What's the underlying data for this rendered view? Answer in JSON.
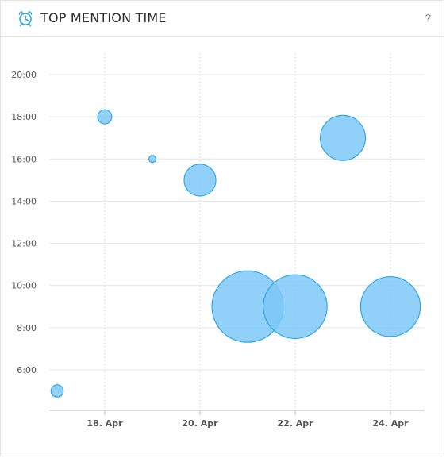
{
  "header": {
    "title": "TOP MENTION TIME",
    "help_label": "?",
    "icon": "alarm-clock-icon"
  },
  "colors": {
    "bubble_fill": "#7cc8f8",
    "bubble_stroke": "#1a9fe0",
    "grid": "#e4e4e4",
    "axis_text": "#555555"
  },
  "chart_data": {
    "type": "bubble",
    "title": "",
    "xlabel": "",
    "ylabel": "",
    "x_tick_labels": [
      "18. Apr",
      "20. Apr",
      "22. Apr",
      "24. Apr"
    ],
    "x_ticks": [
      "2020-04-18",
      "2020-04-20",
      "2020-04-22",
      "2020-04-24"
    ],
    "y_tick_labels": [
      "6:00",
      "8:00",
      "10:00",
      "12:00",
      "14:00",
      "16:00",
      "18:00",
      "20:00"
    ],
    "ylim": [
      4,
      21
    ],
    "xlim": [
      "2020-04-16",
      "2020-04-24"
    ],
    "grid": true,
    "legend": "none",
    "points": [
      {
        "x": "2020-04-17",
        "y": "5:00",
        "size": 3
      },
      {
        "x": "2020-04-18",
        "y": "18:00",
        "size": 4
      },
      {
        "x": "2020-04-19",
        "y": "16:00",
        "size": 1
      },
      {
        "x": "2020-04-20",
        "y": "15:00",
        "size": 20
      },
      {
        "x": "2020-04-21",
        "y": "9:00",
        "size": 100
      },
      {
        "x": "2020-04-22",
        "y": "9:00",
        "size": 80
      },
      {
        "x": "2020-04-23",
        "y": "17:00",
        "size": 40
      },
      {
        "x": "2020-04-24",
        "y": "9:00",
        "size": 70
      }
    ]
  }
}
